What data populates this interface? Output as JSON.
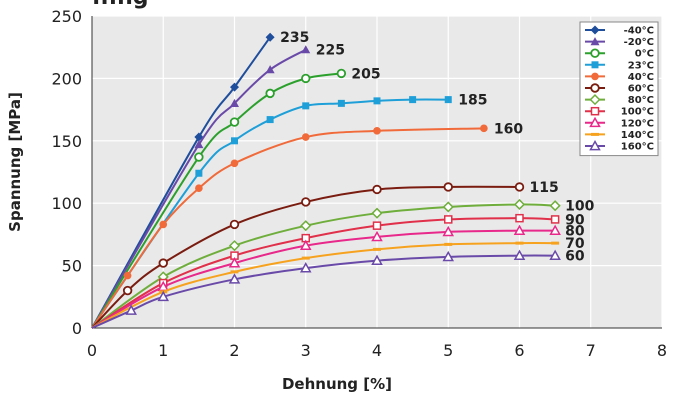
{
  "chart_data": {
    "type": "line",
    "title": "...ng",
    "xlabel": "Dehnung [%]",
    "ylabel": "Spannung [MPa]",
    "xlim": [
      0,
      8
    ],
    "ylim": [
      0,
      250
    ],
    "xticks": [
      0,
      1,
      2,
      3,
      4,
      5,
      6,
      7,
      8
    ],
    "yticks": [
      0,
      50,
      100,
      150,
      200,
      250
    ],
    "grid": true,
    "legend_position": "top-right",
    "series": [
      {
        "name": "-40°C",
        "color": "#1f4e9c",
        "marker": "diamond",
        "end_label": "235",
        "points": [
          [
            0,
            0
          ],
          [
            1.5,
            153
          ],
          [
            2,
            193
          ],
          [
            2.5,
            233
          ]
        ]
      },
      {
        "name": "-20°C",
        "color": "#6a4aa8",
        "marker": "triangle",
        "end_label": "225",
        "points": [
          [
            0,
            0
          ],
          [
            1.5,
            147
          ],
          [
            2,
            180
          ],
          [
            2.5,
            207
          ],
          [
            3,
            223
          ]
        ]
      },
      {
        "name": "0°C",
        "color": "#2ca02c",
        "marker": "circle-open",
        "end_label": "205",
        "points": [
          [
            0,
            0
          ],
          [
            1.5,
            137
          ],
          [
            2,
            165
          ],
          [
            2.5,
            188
          ],
          [
            3,
            200
          ],
          [
            3.5,
            204
          ]
        ]
      },
      {
        "name": "23°C",
        "color": "#1e9fd8",
        "marker": "square",
        "end_label": "185",
        "points": [
          [
            0,
            0
          ],
          [
            1.5,
            124
          ],
          [
            2,
            150
          ],
          [
            2.5,
            167
          ],
          [
            3,
            178
          ],
          [
            3.5,
            180
          ],
          [
            4,
            182
          ],
          [
            4.5,
            183
          ],
          [
            5,
            183
          ]
        ]
      },
      {
        "name": "40°C",
        "color": "#f06a3a",
        "marker": "circle",
        "end_label": "160",
        "points": [
          [
            0,
            0
          ],
          [
            0.5,
            42
          ],
          [
            1,
            83
          ],
          [
            1.5,
            112
          ],
          [
            2,
            132
          ],
          [
            3,
            153
          ],
          [
            4,
            158
          ],
          [
            5.5,
            160
          ]
        ]
      },
      {
        "name": "60°C",
        "color": "#7a1c10",
        "marker": "circle-open",
        "end_label": "115",
        "points": [
          [
            0,
            0
          ],
          [
            0.5,
            30
          ],
          [
            1,
            52
          ],
          [
            2,
            83
          ],
          [
            3,
            101
          ],
          [
            4,
            111
          ],
          [
            5,
            113
          ],
          [
            6,
            113
          ]
        ]
      },
      {
        "name": "80°C",
        "color": "#6fae3c",
        "marker": "diamond-open",
        "end_label": "100",
        "points": [
          [
            0,
            0
          ],
          [
            1,
            41
          ],
          [
            2,
            66
          ],
          [
            3,
            82
          ],
          [
            4,
            92
          ],
          [
            5,
            97
          ],
          [
            6,
            99
          ],
          [
            6.5,
            98
          ]
        ]
      },
      {
        "name": "100°C",
        "color": "#e0304a",
        "marker": "square-open",
        "end_label": "90",
        "points": [
          [
            0,
            0
          ],
          [
            1,
            36
          ],
          [
            2,
            58
          ],
          [
            3,
            72
          ],
          [
            4,
            82
          ],
          [
            5,
            87
          ],
          [
            6,
            88
          ],
          [
            6.5,
            87
          ]
        ]
      },
      {
        "name": "120°C",
        "color": "#e8288a",
        "marker": "triangle-open",
        "end_label": "80",
        "points": [
          [
            0,
            0
          ],
          [
            1,
            33
          ],
          [
            2,
            52
          ],
          [
            3,
            66
          ],
          [
            4,
            73
          ],
          [
            5,
            77
          ],
          [
            6,
            78
          ],
          [
            6.5,
            78
          ]
        ]
      },
      {
        "name": "140°C",
        "color": "#f6a21e",
        "marker": "dash",
        "end_label": "70",
        "points": [
          [
            0,
            0
          ],
          [
            1,
            29
          ],
          [
            2,
            45
          ],
          [
            3,
            56
          ],
          [
            4,
            63
          ],
          [
            5,
            67
          ],
          [
            6,
            68
          ],
          [
            6.5,
            68
          ]
        ]
      },
      {
        "name": "160°C",
        "color": "#6a4aa8",
        "marker": "triangle-open",
        "end_label": "60",
        "points": [
          [
            0,
            0
          ],
          [
            0.55,
            14
          ],
          [
            1,
            25
          ],
          [
            2,
            39
          ],
          [
            3,
            48
          ],
          [
            4,
            54
          ],
          [
            5,
            57
          ],
          [
            6,
            58
          ],
          [
            6.5,
            58
          ]
        ]
      }
    ]
  }
}
